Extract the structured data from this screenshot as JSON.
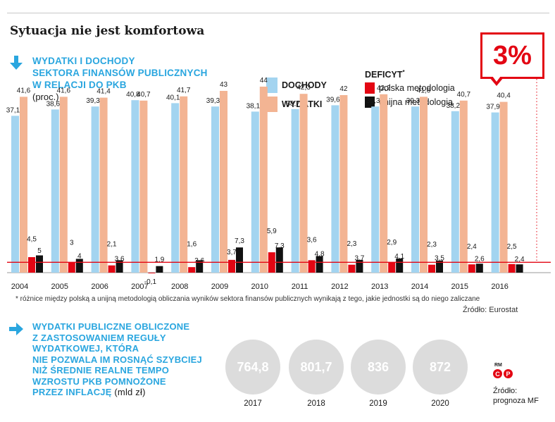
{
  "headline": "Sytuacja nie jest komfortowa",
  "section1": {
    "title_lines": [
      "WYDATKI I DOCHODY",
      "SEKTORA FINANSÓW PUBLICZNYCH",
      "W RELACJI DO PKB"
    ],
    "unit": "(proc.)"
  },
  "legend": {
    "dochody": "DOCHODY",
    "wydatki": "WYDATKI",
    "deficyt_head": "DEFICYT",
    "deficyt_mark": "*",
    "polska": "polska metodologia",
    "unijna": "unijna metodologia"
  },
  "badge": "3%",
  "colors": {
    "dochody": "#a3d4f0",
    "wydatki": "#f3b493",
    "polska": "#e30613",
    "unijna": "#111111",
    "accent": "#2aa6df",
    "threshold": "#e30613"
  },
  "chart_data": {
    "type": "bar",
    "categories": [
      "2004",
      "2005",
      "2006",
      "2007",
      "2008",
      "2009",
      "2010",
      "2011",
      "2012",
      "2013",
      "2014",
      "2015",
      "2016"
    ],
    "series": [
      {
        "name": "DOCHODY",
        "values": [
          37.1,
          38.6,
          39.3,
          40.8,
          40.1,
          39.3,
          38.1,
          38.7,
          39.6,
          39.3,
          39.3,
          38.2,
          37.9
        ],
        "labels": [
          "37,1",
          "38,6",
          "39,3",
          "40,8",
          "40,1",
          "39,3",
          "38,1",
          "38,7",
          "39,6",
          "39,3",
          "39,3",
          "38,2",
          "37,9"
        ]
      },
      {
        "name": "WYDATKI",
        "values": [
          41.6,
          41.6,
          41.4,
          40.7,
          41.7,
          43,
          44,
          42.3,
          42,
          42.2,
          41.6,
          40.7,
          40.4
        ],
        "labels": [
          "41,6",
          "41,6",
          "41,4",
          "40,7",
          "41,7",
          "43",
          "44",
          "42,3",
          "42",
          "42,2",
          "41,6",
          "40,7",
          "40,4"
        ]
      },
      {
        "name": "polska metodologia",
        "values": [
          4.5,
          3,
          2.1,
          -0.1,
          1.6,
          3.7,
          5.9,
          3.6,
          2.3,
          2.9,
          2.3,
          2.4,
          2.5
        ],
        "labels": [
          "4,5",
          "3",
          "2,1",
          "-0,1",
          "1,6",
          "3,7",
          "5,9",
          "3,6",
          "2,3",
          "2,9",
          "2,3",
          "2,4",
          "2,5"
        ]
      },
      {
        "name": "unijna metodologia",
        "values": [
          5,
          4,
          3.6,
          1.9,
          3.6,
          7.3,
          7.3,
          4.8,
          3.7,
          4.1,
          3.5,
          2.6,
          2.4
        ],
        "labels": [
          "5",
          "4",
          "3,6",
          "1,9",
          "3,6",
          "7,3",
          "7,3",
          "4,8",
          "3,7",
          "4,1",
          "3,5",
          "2,6",
          "2,4"
        ]
      }
    ],
    "threshold": 3
  },
  "footnote": "* różnice między polską a unijną metodologią obliczania wyników sektora finansów publicznych wynikają z tego, jakie jednostki są do niego zaliczane",
  "source1": "Źródło: Eurostat",
  "section2": {
    "title_lines": [
      "WYDATKI PUBLICZNE OBLICZONE",
      "Z ZASTOSOWANIEM REGUŁY",
      "WYDATKOWEJ, KTÓRA",
      "NIE POZWALA IM ROSNĄĆ SZYBCIEJ",
      "NIŻ ŚREDNIE REALNE TEMPO",
      "WZROSTU PKB POMNOŻONE",
      "PRZEZ INFLACJĘ"
    ],
    "unit": "(mld zł)",
    "items": [
      {
        "year": "2017",
        "value": "764,8"
      },
      {
        "year": "2018",
        "value": "801,7"
      },
      {
        "year": "2019",
        "value": "836"
      },
      {
        "year": "2020",
        "value": "872"
      }
    ]
  },
  "rm": "RM",
  "cp": [
    "C",
    "P"
  ],
  "source2_lines": [
    "Źródło:",
    "prognoza MF"
  ]
}
